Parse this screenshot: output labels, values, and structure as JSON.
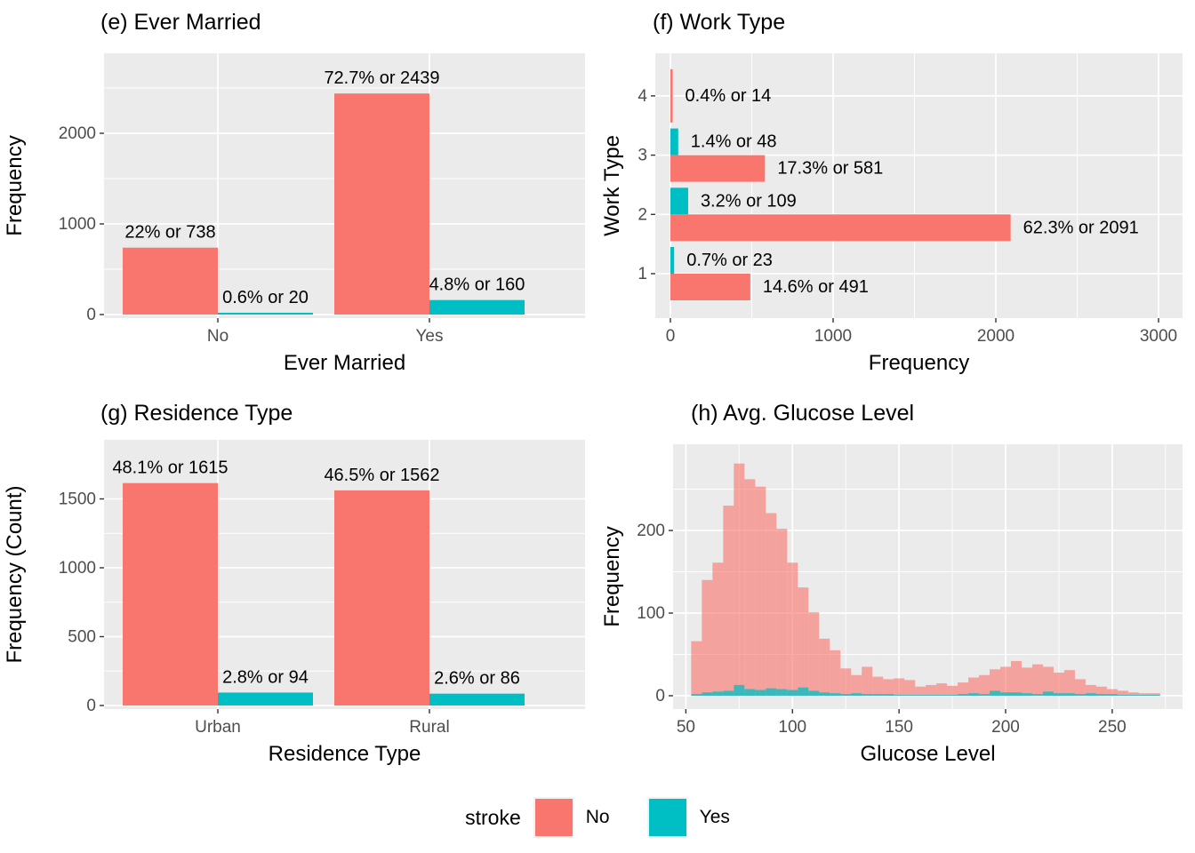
{
  "colors": {
    "no": "#F8766D",
    "yes": "#00BFC4",
    "panel_bg": "#EBEBEB",
    "grid": "#FFFFFF",
    "tick_label": "#4D4D4D",
    "axis_tick": "#333333",
    "text": "#000000"
  },
  "legend": {
    "title": "stroke",
    "items": [
      {
        "label": "No",
        "color": "#F8766D"
      },
      {
        "label": "Yes",
        "color": "#00BFC4"
      }
    ]
  },
  "chart_data": [
    {
      "id": "e",
      "type": "bar",
      "orientation": "vertical",
      "title": "(e) Ever Married",
      "xlabel": "Ever Married",
      "ylabel": "Frequency",
      "categories": [
        "No",
        "Yes"
      ],
      "series": [
        {
          "name": "No",
          "color": "#F8766D",
          "values": [
            738,
            2439
          ],
          "labels": [
            "22% or 738",
            "72.7% or 2439"
          ]
        },
        {
          "name": "Yes",
          "color": "#00BFC4",
          "values": [
            20,
            160
          ],
          "labels": [
            "0.6% or 20",
            "4.8% or 160"
          ]
        }
      ],
      "yticks": [
        0,
        1000,
        2000
      ],
      "yminor": [
        500,
        1500,
        2500
      ],
      "ylim": [
        0,
        2850
      ]
    },
    {
      "id": "f",
      "type": "bar",
      "orientation": "horizontal",
      "title": "(f) Work Type",
      "xlabel": "Frequency",
      "ylabel": "Work Type",
      "categories": [
        "1",
        "2",
        "3",
        "4"
      ],
      "rows": [
        {
          "cat": "4",
          "bars": [
            {
              "stroke": "No",
              "value": 14,
              "label": "0.4% or 14",
              "full": true
            }
          ]
        },
        {
          "cat": "3",
          "bars": [
            {
              "stroke": "Yes",
              "value": 48,
              "label": "1.4% or 48"
            },
            {
              "stroke": "No",
              "value": 581,
              "label": "17.3% or 581"
            }
          ]
        },
        {
          "cat": "2",
          "bars": [
            {
              "stroke": "Yes",
              "value": 109,
              "label": "3.2% or 109"
            },
            {
              "stroke": "No",
              "value": 2091,
              "label": "62.3% or 2091"
            }
          ]
        },
        {
          "cat": "1",
          "bars": [
            {
              "stroke": "Yes",
              "value": 23,
              "label": "0.7% or 23"
            },
            {
              "stroke": "No",
              "value": 491,
              "label": "14.6% or 491"
            }
          ]
        }
      ],
      "xticks": [
        0,
        1000,
        2000,
        3000
      ],
      "xminor": [
        500,
        1500,
        2500
      ],
      "xlim": [
        0,
        3150
      ]
    },
    {
      "id": "g",
      "type": "bar",
      "orientation": "vertical",
      "title": "(g) Residence Type",
      "xlabel": "Residence Type",
      "ylabel": "Frequency (Count)",
      "categories": [
        "Urban",
        "Rural"
      ],
      "series": [
        {
          "name": "No",
          "color": "#F8766D",
          "values": [
            1615,
            1562
          ],
          "labels": [
            "48.1% or 1615",
            "46.5% or 1562"
          ]
        },
        {
          "name": "Yes",
          "color": "#00BFC4",
          "values": [
            94,
            86
          ],
          "labels": [
            "2.8% or 94",
            "2.6% or 86"
          ]
        }
      ],
      "yticks": [
        0,
        500,
        1000,
        1500
      ],
      "yminor": [
        250,
        750,
        1250
      ],
      "ylim": [
        0,
        1900
      ]
    },
    {
      "id": "h",
      "type": "histogram",
      "title": "(h) Avg. Glucose Level",
      "xlabel": "Glucose Level",
      "ylabel": "Frequency",
      "bin_start": 52.5,
      "bin_width": 5,
      "series": [
        {
          "name": "No",
          "color": "#F8766D",
          "opacity": 0.62,
          "values": [
            66,
            140,
            161,
            230,
            281,
            262,
            253,
            221,
            202,
            161,
            131,
            101,
            69,
            55,
            33,
            25,
            35,
            23,
            20,
            21,
            19,
            11,
            13,
            15,
            12,
            16,
            22,
            25,
            32,
            35,
            42,
            34,
            38,
            35,
            28,
            31,
            20,
            13,
            11,
            8,
            6,
            4,
            3,
            3
          ]
        },
        {
          "name": "Yes",
          "color": "#00BFC4",
          "opacity": 0.75,
          "values": [
            2,
            4,
            5,
            6,
            13,
            8,
            7,
            9,
            8,
            7,
            10,
            6,
            4,
            3,
            2,
            3,
            2,
            2,
            2,
            1,
            1,
            1,
            1,
            1,
            1,
            2,
            3,
            2,
            6,
            4,
            4,
            3,
            2,
            5,
            3,
            3,
            2,
            3,
            2,
            2,
            1,
            1,
            1,
            1
          ]
        }
      ],
      "xticks": [
        50,
        100,
        150,
        200,
        250
      ],
      "xminor": [
        75,
        125,
        175,
        225,
        275
      ],
      "yticks": [
        0,
        100,
        200
      ],
      "yminor": [
        50,
        150,
        250
      ],
      "xlim": [
        44,
        283
      ],
      "ylim": [
        0,
        310
      ]
    }
  ]
}
